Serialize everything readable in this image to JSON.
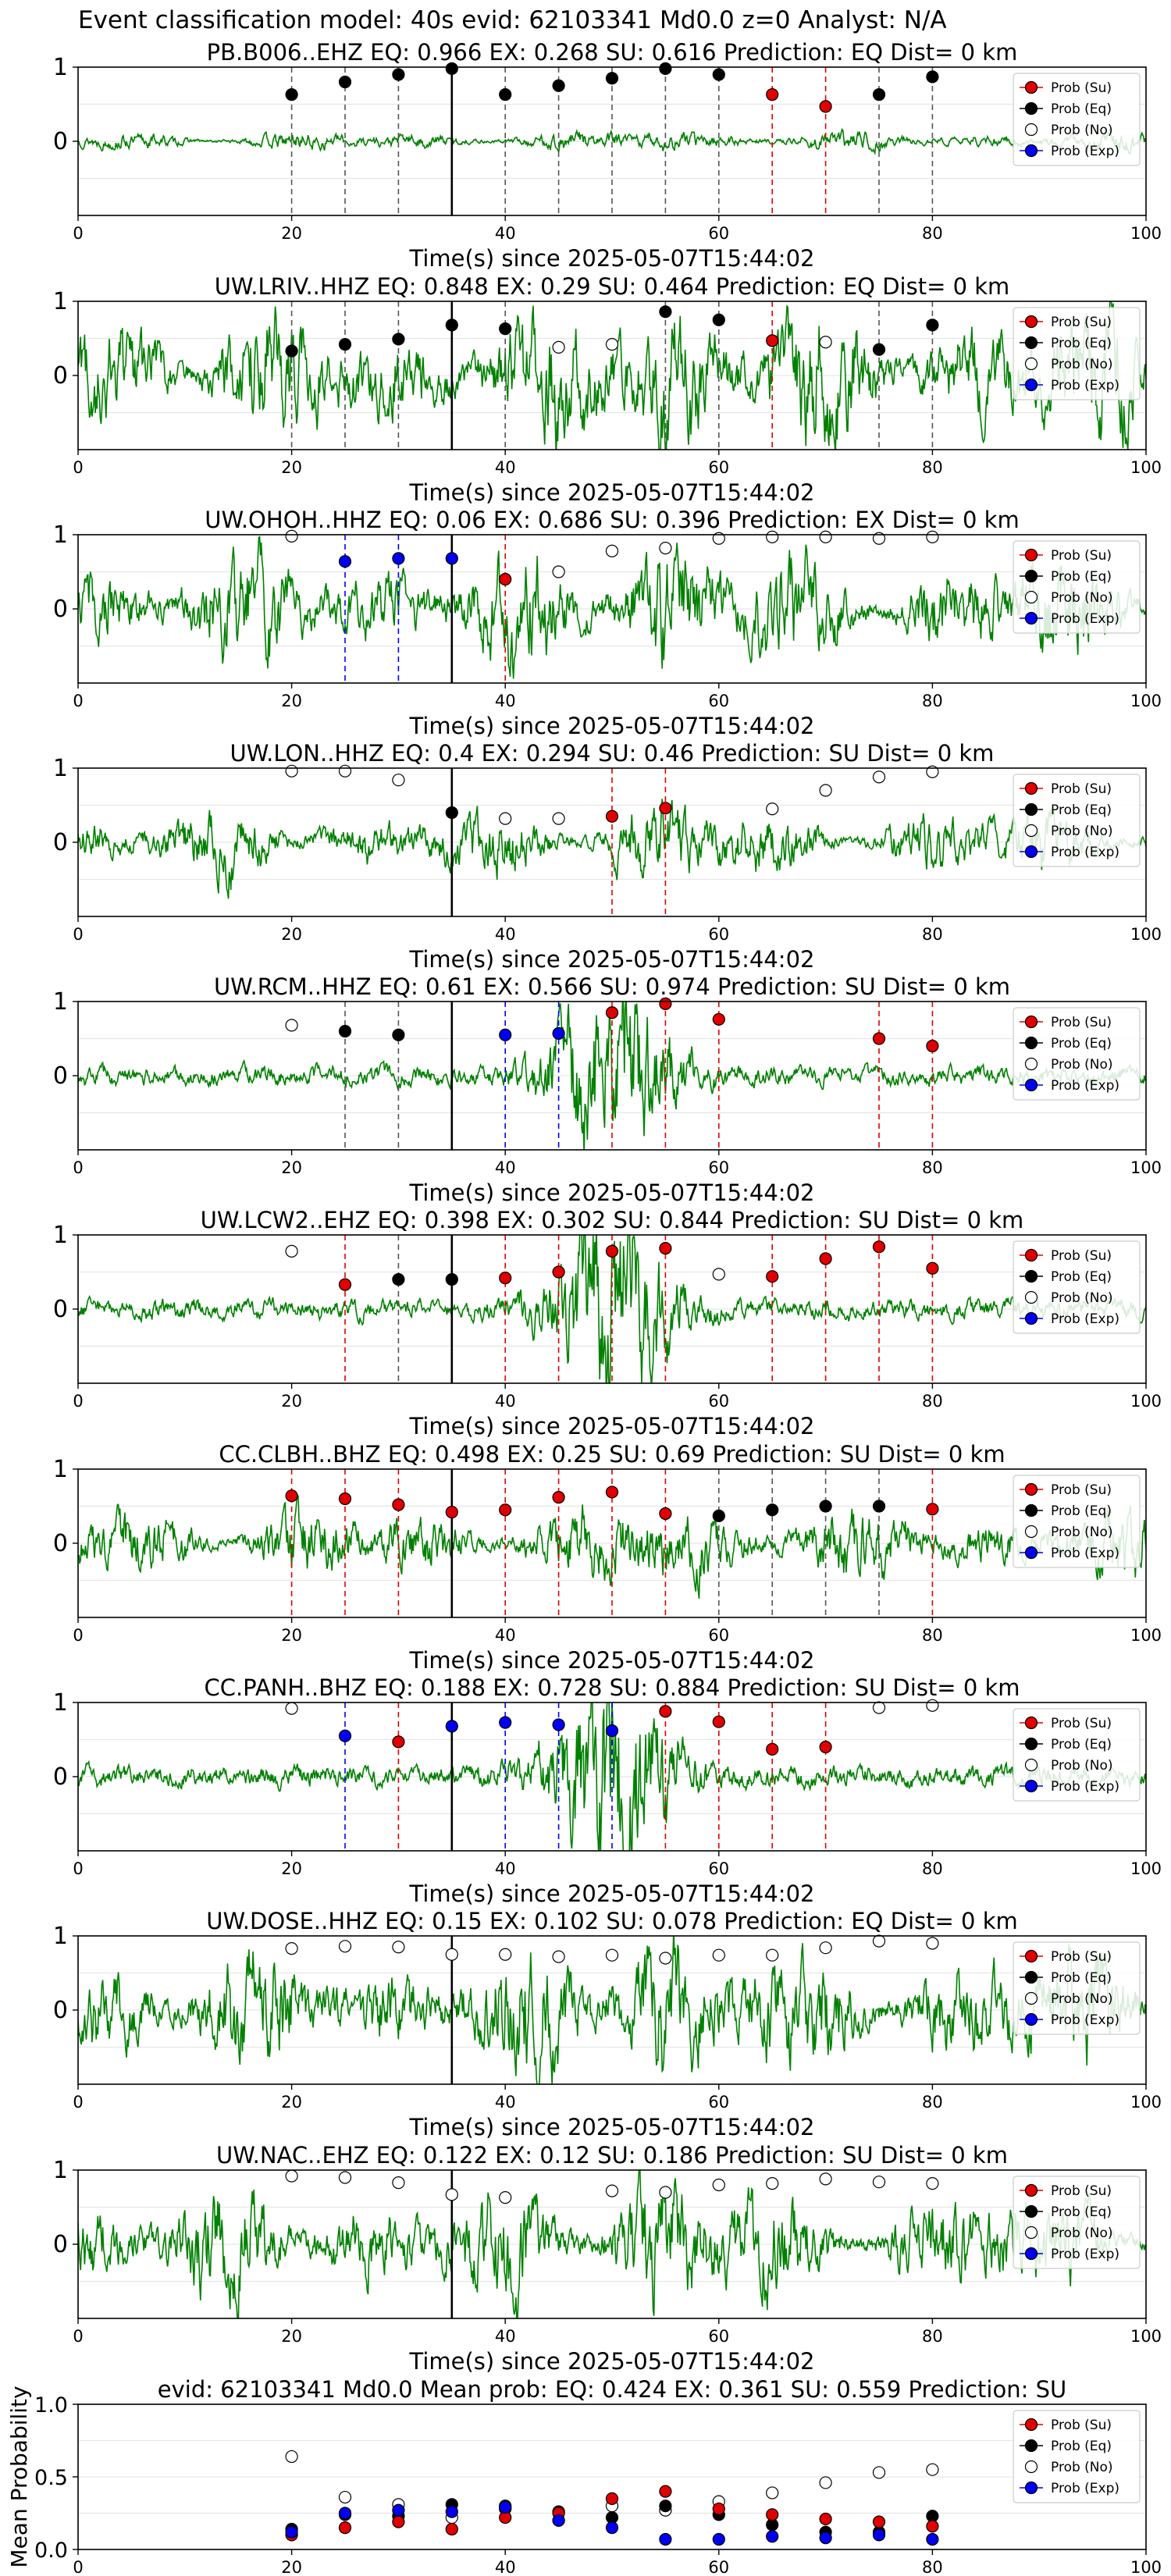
{
  "page_title": "Event classification model: 40s evid: 62103341 Md0.0 z=0 Analyst: N/A",
  "colors": {
    "su": "#e00000",
    "eq": "#000000",
    "no": "#ffffff",
    "exp": "#0000ee",
    "trace": "#008000",
    "grid": "#e6e6e6"
  },
  "legend": [
    {
      "label": "Prob (Su)",
      "key": "su"
    },
    {
      "label": "Prob (Eq)",
      "key": "eq"
    },
    {
      "label": "Prob (No)",
      "key": "no"
    },
    {
      "label": "Prob (Exp)",
      "key": "exp"
    }
  ],
  "chart_data": [
    {
      "type": "scatter",
      "title": "PB.B006..EHZ   EQ: 0.966  EX: 0.268  SU: 0.616   Prediction: EQ    Dist= 0 km",
      "xlabel": "Time(s) since 2025-05-07T15:44:02",
      "ylabel": "",
      "xlim": [
        0,
        100
      ],
      "ylim": [
        -1,
        1
      ],
      "xticks": [
        0,
        20,
        40,
        60,
        80,
        100
      ],
      "yticks": [
        0,
        1
      ],
      "trace": "seismogram",
      "amplitude": 0.13,
      "windows": [
        {
          "x": 20,
          "eq": 0.63
        },
        {
          "x": 25,
          "eq": 0.8
        },
        {
          "x": 30,
          "eq": 0.9
        },
        {
          "x": 35,
          "eq": 0.98
        },
        {
          "x": 40,
          "eq": 0.63
        },
        {
          "x": 45,
          "eq": 0.75
        },
        {
          "x": 50,
          "eq": 0.85
        },
        {
          "x": 55,
          "eq": 0.98
        },
        {
          "x": 60,
          "eq": 0.9
        },
        {
          "x": 65,
          "su": 0.63
        },
        {
          "x": 70,
          "su": 0.47
        },
        {
          "x": 75,
          "eq": 0.63
        },
        {
          "x": 80,
          "eq": 0.87
        }
      ]
    },
    {
      "type": "scatter",
      "title": "UW.LRIV..HHZ   EQ: 0.848  EX: 0.29  SU: 0.464   Prediction: EQ    Dist= 0 km",
      "xlabel": "Time(s) since 2025-05-07T15:44:02",
      "ylabel": "",
      "xlim": [
        0,
        100
      ],
      "ylim": [
        -1,
        1
      ],
      "xticks": [
        0,
        20,
        40,
        60,
        80,
        100
      ],
      "yticks": [
        0,
        1
      ],
      "trace": "seismogram",
      "amplitude": 0.9,
      "windows": [
        {
          "x": 20,
          "eq": 0.33
        },
        {
          "x": 25,
          "eq": 0.42
        },
        {
          "x": 30,
          "eq": 0.49
        },
        {
          "x": 35,
          "eq": 0.68
        },
        {
          "x": 40,
          "eq": 0.63
        },
        {
          "x": 45,
          "no": 0.38
        },
        {
          "x": 50,
          "no": 0.42
        },
        {
          "x": 55,
          "eq": 0.86
        },
        {
          "x": 60,
          "eq": 0.75
        },
        {
          "x": 65,
          "su": 0.47
        },
        {
          "x": 70,
          "no": 0.45
        },
        {
          "x": 75,
          "eq": 0.35
        },
        {
          "x": 80,
          "eq": 0.68
        }
      ]
    },
    {
      "type": "scatter",
      "title": "UW.OHOH..HHZ   EQ: 0.06  EX: 0.686  SU: 0.396   Prediction: EX    Dist= 0 km",
      "xlabel": "Time(s) since 2025-05-07T15:44:02",
      "ylabel": "",
      "xlim": [
        0,
        100
      ],
      "ylim": [
        -1,
        1
      ],
      "xticks": [
        0,
        20,
        40,
        60,
        80,
        100
      ],
      "yticks": [
        0,
        1
      ],
      "trace": "seismogram",
      "amplitude": 0.75,
      "windows": [
        {
          "x": 20,
          "no": 0.98
        },
        {
          "x": 25,
          "exp": 0.64
        },
        {
          "x": 30,
          "exp": 0.68
        },
        {
          "x": 35,
          "exp": 0.68
        },
        {
          "x": 40,
          "su": 0.4
        },
        {
          "x": 45,
          "no": 0.5
        },
        {
          "x": 50,
          "no": 0.78
        },
        {
          "x": 55,
          "no": 0.82
        },
        {
          "x": 60,
          "no": 0.95
        },
        {
          "x": 65,
          "no": 0.97
        },
        {
          "x": 70,
          "no": 0.97
        },
        {
          "x": 75,
          "no": 0.95
        },
        {
          "x": 80,
          "no": 0.97
        }
      ]
    },
    {
      "type": "scatter",
      "title": "UW.LON..HHZ   EQ: 0.4  EX: 0.294  SU: 0.46   Prediction: SU    Dist= 0 km",
      "xlabel": "Time(s) since 2025-05-07T15:44:02",
      "ylabel": "",
      "xlim": [
        0,
        100
      ],
      "ylim": [
        -1,
        1
      ],
      "xticks": [
        0,
        20,
        40,
        60,
        80,
        100
      ],
      "yticks": [
        0,
        1
      ],
      "trace": "seismogram",
      "amplitude": 0.45,
      "windows": [
        {
          "x": 20,
          "no": 0.96
        },
        {
          "x": 25,
          "no": 0.96
        },
        {
          "x": 30,
          "no": 0.84
        },
        {
          "x": 35,
          "eq": 0.4
        },
        {
          "x": 40,
          "no": 0.32
        },
        {
          "x": 45,
          "no": 0.32
        },
        {
          "x": 50,
          "su": 0.35
        },
        {
          "x": 55,
          "su": 0.46
        },
        {
          "x": 65,
          "no": 0.45
        },
        {
          "x": 70,
          "no": 0.7
        },
        {
          "x": 75,
          "no": 0.88
        },
        {
          "x": 80,
          "no": 0.95
        }
      ]
    },
    {
      "type": "scatter",
      "title": "UW.RCM..HHZ   EQ: 0.61  EX: 0.566  SU: 0.974   Prediction: SU    Dist= 0 km",
      "xlabel": "Time(s) since 2025-05-07T15:44:02",
      "ylabel": "",
      "xlim": [
        0,
        100
      ],
      "ylim": [
        -1,
        1
      ],
      "xticks": [
        0,
        20,
        40,
        60,
        80,
        100
      ],
      "yticks": [
        0,
        1
      ],
      "trace": "burst",
      "amplitude": 0.8,
      "windows": [
        {
          "x": 20,
          "no": 0.68
        },
        {
          "x": 25,
          "eq": 0.6
        },
        {
          "x": 30,
          "eq": 0.55
        },
        {
          "x": 40,
          "exp": 0.55
        },
        {
          "x": 45,
          "exp": 0.57
        },
        {
          "x": 50,
          "su": 0.85
        },
        {
          "x": 55,
          "su": 0.97
        },
        {
          "x": 60,
          "su": 0.76
        },
        {
          "x": 75,
          "su": 0.5
        },
        {
          "x": 80,
          "su": 0.4
        }
      ]
    },
    {
      "type": "scatter",
      "title": "UW.LCW2..EHZ   EQ: 0.398  EX: 0.302  SU: 0.844   Prediction: SU    Dist= 0 km",
      "xlabel": "Time(s) since 2025-05-07T15:44:02",
      "ylabel": "",
      "xlim": [
        0,
        100
      ],
      "ylim": [
        -1,
        1
      ],
      "xticks": [
        0,
        20,
        40,
        60,
        80,
        100
      ],
      "yticks": [
        0,
        1
      ],
      "trace": "burst",
      "amplitude": 0.85,
      "windows": [
        {
          "x": 20,
          "no": 0.78
        },
        {
          "x": 25,
          "su": 0.33
        },
        {
          "x": 30,
          "eq": 0.4
        },
        {
          "x": 35,
          "eq": 0.4
        },
        {
          "x": 40,
          "su": 0.42
        },
        {
          "x": 45,
          "su": 0.5
        },
        {
          "x": 50,
          "su": 0.78
        },
        {
          "x": 55,
          "su": 0.82
        },
        {
          "x": 60,
          "no": 0.47
        },
        {
          "x": 65,
          "su": 0.44
        },
        {
          "x": 70,
          "su": 0.68
        },
        {
          "x": 75,
          "su": 0.84
        },
        {
          "x": 80,
          "su": 0.55
        }
      ]
    },
    {
      "type": "scatter",
      "title": "CC.CLBH..BHZ   EQ: 0.498  EX: 0.25  SU: 0.69   Prediction: SU    Dist= 0 km",
      "xlabel": "Time(s) since 2025-05-07T15:44:02",
      "ylabel": "",
      "xlim": [
        0,
        100
      ],
      "ylim": [
        -1,
        1
      ],
      "xticks": [
        0,
        20,
        40,
        60,
        80,
        100
      ],
      "yticks": [
        0,
        1
      ],
      "trace": "seismogram",
      "amplitude": 0.5,
      "windows": [
        {
          "x": 20,
          "su": 0.64
        },
        {
          "x": 25,
          "su": 0.6
        },
        {
          "x": 30,
          "su": 0.52
        },
        {
          "x": 35,
          "su": 0.42
        },
        {
          "x": 40,
          "su": 0.45
        },
        {
          "x": 45,
          "su": 0.62
        },
        {
          "x": 50,
          "su": 0.69
        },
        {
          "x": 55,
          "su": 0.4
        },
        {
          "x": 60,
          "eq": 0.37
        },
        {
          "x": 65,
          "eq": 0.45
        },
        {
          "x": 70,
          "eq": 0.5
        },
        {
          "x": 75,
          "eq": 0.5
        },
        {
          "x": 80,
          "su": 0.46
        }
      ]
    },
    {
      "type": "scatter",
      "title": "CC.PANH..BHZ   EQ: 0.188  EX: 0.728  SU: 0.884   Prediction: SU    Dist= 0 km",
      "xlabel": "Time(s) since 2025-05-07T15:44:02",
      "ylabel": "",
      "xlim": [
        0,
        100
      ],
      "ylim": [
        -1,
        1
      ],
      "xticks": [
        0,
        20,
        40,
        60,
        80,
        100
      ],
      "yticks": [
        0,
        1
      ],
      "trace": "burst",
      "amplitude": 0.9,
      "windows": [
        {
          "x": 20,
          "no": 0.92
        },
        {
          "x": 25,
          "exp": 0.55
        },
        {
          "x": 30,
          "su": 0.47
        },
        {
          "x": 35,
          "exp": 0.68
        },
        {
          "x": 40,
          "exp": 0.73
        },
        {
          "x": 45,
          "exp": 0.7
        },
        {
          "x": 50,
          "exp": 0.62
        },
        {
          "x": 55,
          "su": 0.88
        },
        {
          "x": 60,
          "su": 0.74
        },
        {
          "x": 65,
          "su": 0.37
        },
        {
          "x": 70,
          "su": 0.4
        },
        {
          "x": 75,
          "no": 0.93
        },
        {
          "x": 80,
          "no": 0.96
        }
      ]
    },
    {
      "type": "scatter",
      "title": "UW.DOSE..HHZ   EQ: 0.15  EX: 0.102  SU: 0.078   Prediction: EQ    Dist= 0 km",
      "xlabel": "Time(s) since 2025-05-07T15:44:02",
      "ylabel": "",
      "xlim": [
        0,
        100
      ],
      "ylim": [
        -1,
        1
      ],
      "xticks": [
        0,
        20,
        40,
        60,
        80,
        100
      ],
      "yticks": [
        0,
        1
      ],
      "trace": "seismogram",
      "amplitude": 0.85,
      "windows": [
        {
          "x": 20,
          "no": 0.83
        },
        {
          "x": 25,
          "no": 0.86
        },
        {
          "x": 30,
          "no": 0.85
        },
        {
          "x": 35,
          "no": 0.75
        },
        {
          "x": 40,
          "no": 0.75
        },
        {
          "x": 45,
          "no": 0.72
        },
        {
          "x": 50,
          "no": 0.74
        },
        {
          "x": 55,
          "no": 0.7
        },
        {
          "x": 60,
          "no": 0.74
        },
        {
          "x": 65,
          "no": 0.74
        },
        {
          "x": 70,
          "no": 0.84
        },
        {
          "x": 75,
          "no": 0.93
        },
        {
          "x": 80,
          "no": 0.9
        }
      ]
    },
    {
      "type": "scatter",
      "title": "UW.NAC..EHZ   EQ: 0.122  EX: 0.12  SU: 0.186   Prediction: SU    Dist= 0 km",
      "xlabel": "Time(s) since 2025-05-07T15:44:02",
      "ylabel": "",
      "xlim": [
        0,
        100
      ],
      "ylim": [
        -1,
        1
      ],
      "xticks": [
        0,
        20,
        40,
        60,
        80,
        100
      ],
      "yticks": [
        0,
        1
      ],
      "trace": "seismogram",
      "amplitude": 0.75,
      "windows": [
        {
          "x": 20,
          "no": 0.92
        },
        {
          "x": 25,
          "no": 0.9
        },
        {
          "x": 30,
          "no": 0.83
        },
        {
          "x": 35,
          "no": 0.67
        },
        {
          "x": 40,
          "no": 0.63
        },
        {
          "x": 50,
          "no": 0.72
        },
        {
          "x": 55,
          "no": 0.7
        },
        {
          "x": 60,
          "no": 0.8
        },
        {
          "x": 65,
          "no": 0.82
        },
        {
          "x": 70,
          "no": 0.88
        },
        {
          "x": 75,
          "no": 0.84
        },
        {
          "x": 80,
          "no": 0.82
        }
      ]
    },
    {
      "type": "scatter",
      "title": "evid: 62103341   Md0.0   Mean prob:   EQ: 0.424  EX: 0.361  SU: 0.559   Prediction: SU",
      "xlabel": "",
      "ylabel": "Mean Probability",
      "xlim": [
        0,
        100
      ],
      "ylim": [
        0,
        1
      ],
      "xticks": [
        0,
        20,
        40,
        60,
        80,
        100
      ],
      "yticks": [
        0.0,
        0.5,
        1.0
      ],
      "mean_x": [
        20,
        25,
        30,
        35,
        40,
        45,
        50,
        55,
        60,
        65,
        70,
        75,
        80
      ],
      "series": [
        {
          "name": "Prob (No)",
          "key": "no",
          "values": [
            0.64,
            0.36,
            0.31,
            0.22,
            0.28,
            0.2,
            0.3,
            0.27,
            0.33,
            0.39,
            0.46,
            0.53,
            0.55
          ]
        },
        {
          "name": "Prob (Eq)",
          "key": "eq",
          "values": [
            0.14,
            0.24,
            0.23,
            0.31,
            0.3,
            0.26,
            0.22,
            0.3,
            0.24,
            0.17,
            0.12,
            0.12,
            0.23
          ]
        },
        {
          "name": "Prob (Su)",
          "key": "su",
          "values": [
            0.1,
            0.15,
            0.19,
            0.14,
            0.22,
            0.25,
            0.35,
            0.4,
            0.28,
            0.24,
            0.21,
            0.19,
            0.16
          ]
        },
        {
          "name": "Prob (Exp)",
          "key": "exp",
          "values": [
            0.12,
            0.25,
            0.27,
            0.26,
            0.29,
            0.2,
            0.15,
            0.07,
            0.07,
            0.09,
            0.08,
            0.1,
            0.07
          ]
        }
      ]
    }
  ]
}
